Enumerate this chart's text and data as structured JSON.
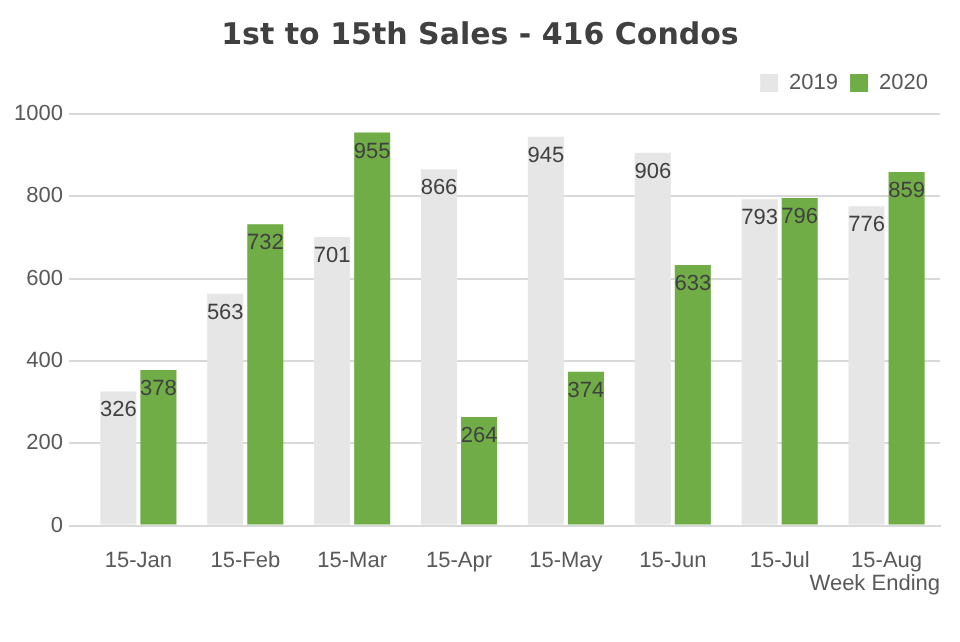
{
  "chart_data": {
    "type": "bar",
    "title": "1st to 15th Sales - 416 Condos",
    "xlabel": "Week Ending",
    "categories": [
      "15-Jan",
      "15-Feb",
      "15-Mar",
      "15-Apr",
      "15-May",
      "15-Jun",
      "15-Jul",
      "15-Aug"
    ],
    "series": [
      {
        "name": "2019",
        "color": "#e7e6e6",
        "values": [
          326,
          563,
          701,
          866,
          945,
          906,
          793,
          776
        ]
      },
      {
        "name": "2020",
        "color": "#70ad47",
        "values": [
          378,
          732,
          955,
          264,
          374,
          633,
          796,
          859
        ]
      }
    ],
    "ylim": [
      0,
      1000
    ],
    "yticks": [
      0,
      200,
      400,
      600,
      800,
      1000
    ],
    "grid": "y",
    "legend": "top right",
    "data_labels": true
  }
}
